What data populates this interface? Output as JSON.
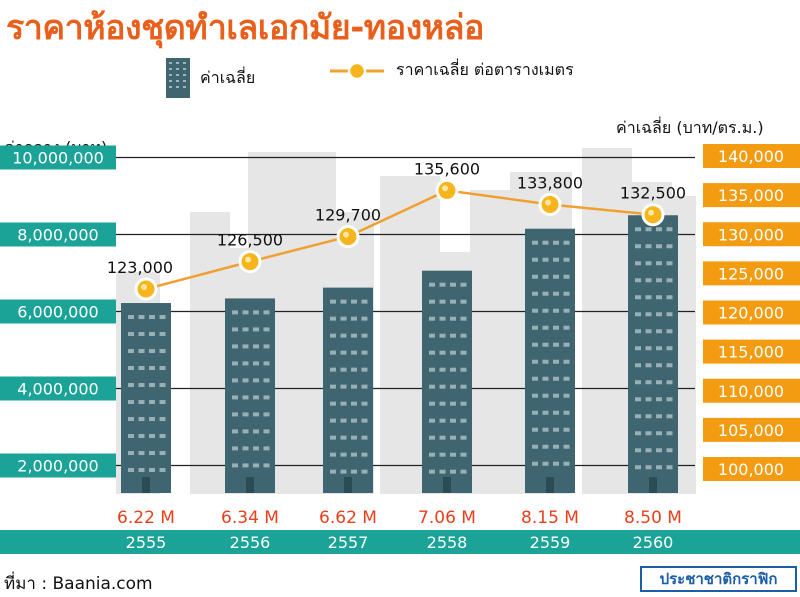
{
  "title": "ราคาห้องชุดทำเลเอกมัย-ทองหล่อ",
  "legend": {
    "bar_label": "ค่าเฉลี่ย",
    "line_label": "ราคาเฉลี่ย ต่อตารางเมตร"
  },
  "source": "ที่มา : Baania.com",
  "brand": "ประชาชาติกราฟิก",
  "colors": {
    "title": "#e8601c",
    "bar": "#3f6670",
    "left_axis_band": "#1aa396",
    "right_axis_band": "#f39c12",
    "line": "#f0a030",
    "marker": "#f6b51c",
    "year_band": "#1aa396",
    "bar_value_text": "#e8401c",
    "background_buildings": "#e6e6e6"
  },
  "chart_data": {
    "type": "bar",
    "categories": [
      "2555",
      "2556",
      "2557",
      "2558",
      "2559",
      "2560"
    ],
    "bar_value_labels": [
      "6.22 M",
      "6.34 M",
      "6.62 M",
      "7.06 M",
      "8.15 M",
      "8.50 M"
    ],
    "series": [
      {
        "name": "ค่าเฉลี่ย",
        "type": "bar",
        "axis": "left",
        "values": [
          6220000,
          6340000,
          6620000,
          7060000,
          8150000,
          8500000
        ]
      },
      {
        "name": "ราคาเฉลี่ย ต่อตารางเมตร",
        "type": "line",
        "axis": "right",
        "values": [
          123000,
          126500,
          129700,
          135600,
          133800,
          132500
        ],
        "labels": [
          "123,000",
          "126,500",
          "129,700",
          "135,600",
          "133,800",
          "132,500"
        ]
      }
    ],
    "left_axis": {
      "label": "ค่ากลาง (บาท)",
      "ticks": [
        2000000,
        4000000,
        6000000,
        8000000,
        10000000
      ],
      "tick_labels": [
        "2,000,000",
        "4,000,000",
        "6,000,000",
        "8,000,000",
        "10,000,000"
      ],
      "range": [
        1000000,
        10900000
      ]
    },
    "right_axis": {
      "label": "ค่าเฉลี่ย (บาท/ตร.ม.)",
      "ticks": [
        100000,
        105000,
        110000,
        115000,
        120000,
        125000,
        130000,
        135000,
        140000
      ],
      "tick_labels": [
        "100,000",
        "105,000",
        "110,000",
        "115,000",
        "120,000",
        "125,000",
        "130,000",
        "135,000",
        "140,000"
      ],
      "range": [
        97600,
        142400
      ]
    },
    "grid": true,
    "legend_position": "top"
  }
}
